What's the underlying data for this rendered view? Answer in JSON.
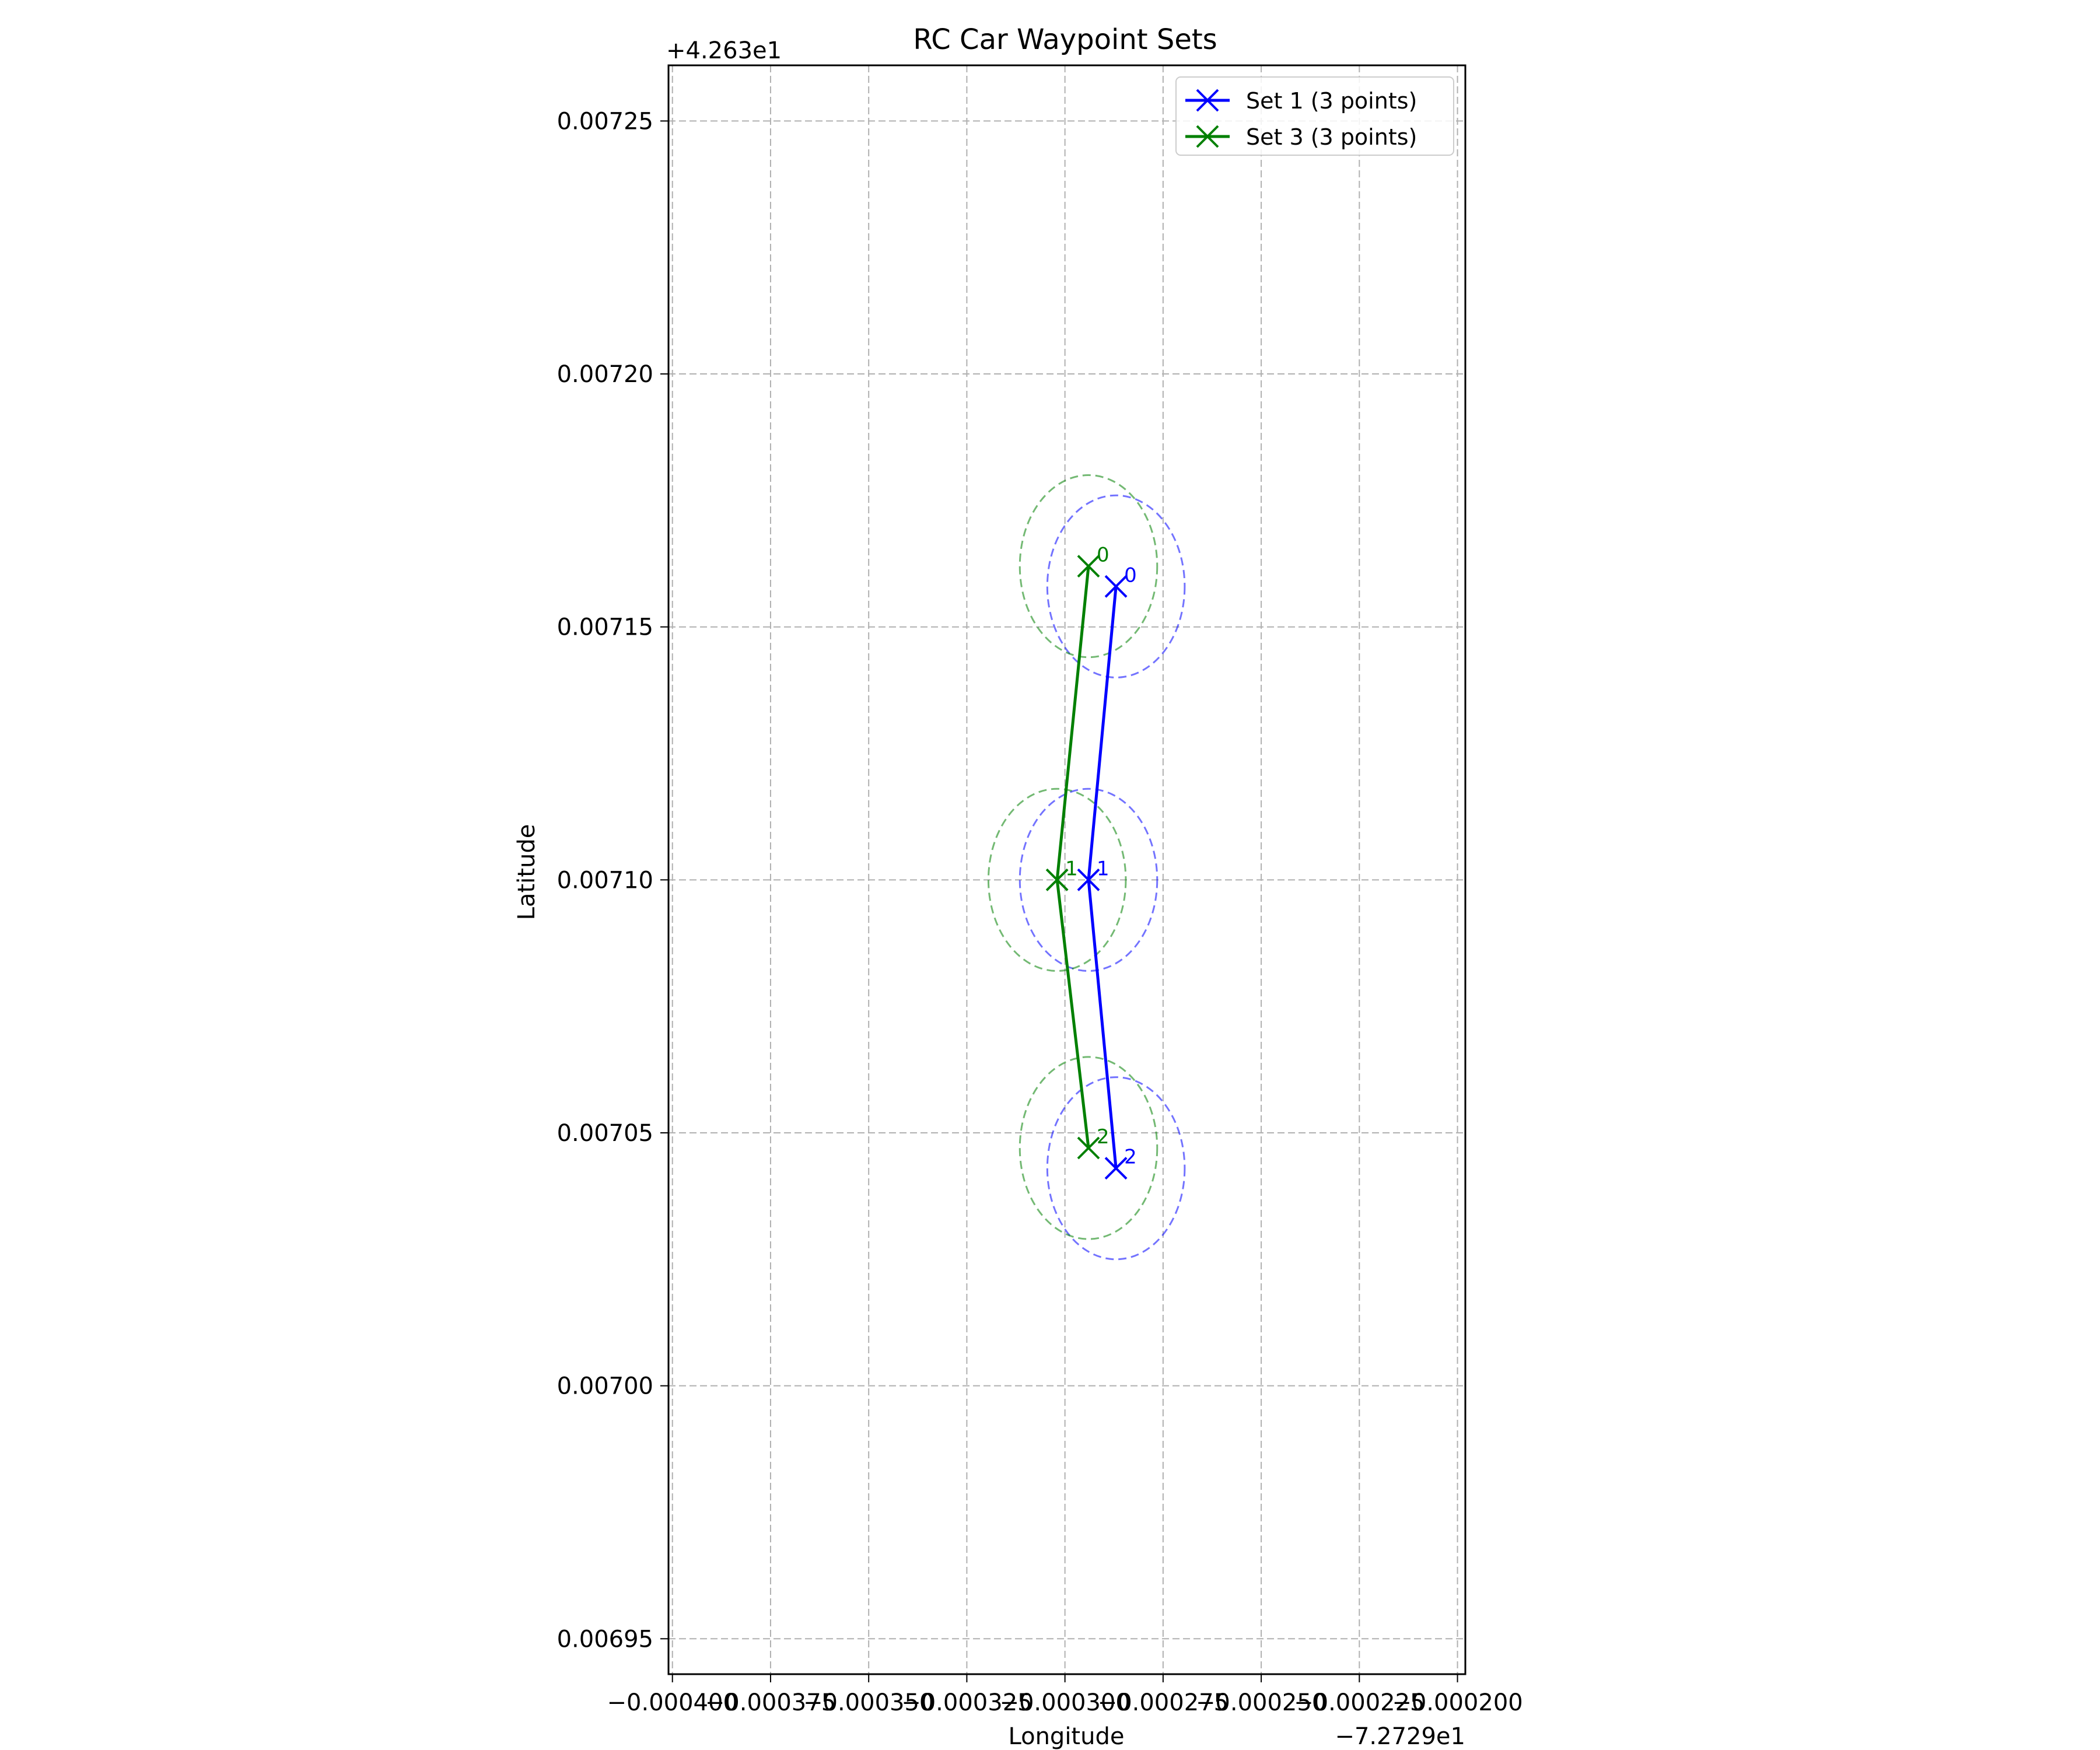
{
  "chart_data": {
    "type": "line",
    "title": "RC Car Waypoint Sets",
    "xlabel": "Longitude",
    "ylabel": "Latitude",
    "x_offset_label": "−7.2729e1",
    "y_offset_label": "+4.263e1",
    "xlim": [
      -0.000401,
      -0.000198
    ],
    "ylim": [
      0.006943,
      0.007261
    ],
    "x_ticks": [
      -0.0004,
      -0.000375,
      -0.00035,
      -0.000325,
      -0.0003,
      -0.000275,
      -0.00025,
      -0.000225,
      -0.0002
    ],
    "x_tick_labels": [
      "−0.000400",
      "−0.000375",
      "−0.000350",
      "−0.000325",
      "−0.000300",
      "−0.000275",
      "−0.000250",
      "−0.000225",
      "−0.000200"
    ],
    "y_ticks": [
      0.00695,
      0.007,
      0.00705,
      0.0071,
      0.00715,
      0.0072,
      0.00725
    ],
    "y_tick_labels": [
      "0.00695",
      "0.00700",
      "0.00705",
      "0.00710",
      "0.00715",
      "0.00720",
      "0.00725"
    ],
    "grid": true,
    "legend_position": "top-right",
    "circle_radius": {
      "x": 1.75e-05,
      "y": 1.8e-05
    },
    "series": [
      {
        "name": "Set 1 (3 points)",
        "color": "#0000ff",
        "x": [
          -0.000287,
          -0.000294,
          -0.000287
        ],
        "y": [
          0.007158,
          0.0071,
          0.007043
        ],
        "point_labels": [
          "0",
          "1",
          "2"
        ]
      },
      {
        "name": "Set 3 (3 points)",
        "color": "#008000",
        "x": [
          -0.000294,
          -0.000302,
          -0.000294
        ],
        "y": [
          0.007162,
          0.0071,
          0.007047
        ],
        "point_labels": [
          "0",
          "1",
          "2"
        ]
      }
    ]
  }
}
